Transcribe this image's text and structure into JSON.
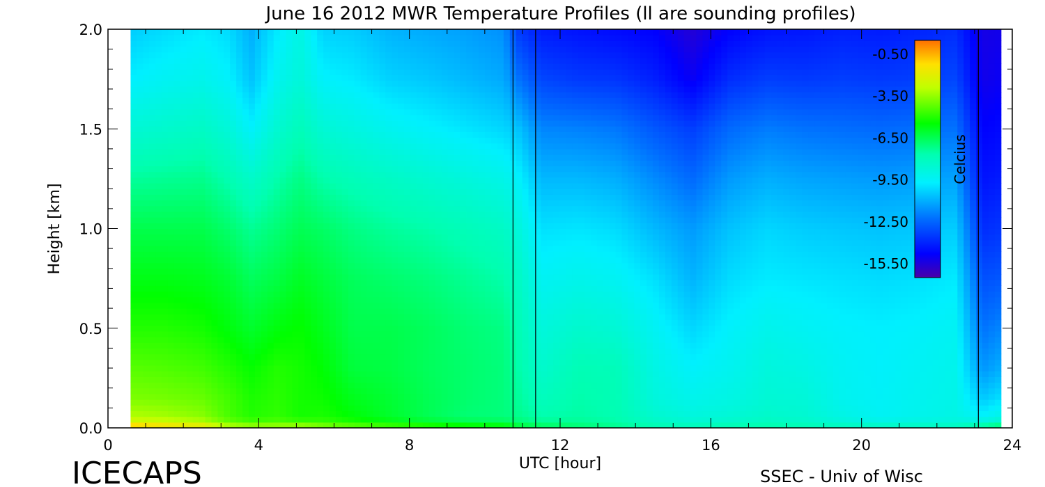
{
  "chart_data": {
    "type": "heatmap",
    "title": "June 16 2012 MWR Temperature Profiles (ll are sounding profiles)",
    "xlabel": "UTC [hour]",
    "ylabel": "Height [km]",
    "xlim": [
      0,
      24
    ],
    "ylim": [
      0,
      2
    ],
    "x_ticks": [
      "0",
      "4",
      "8",
      "12",
      "16",
      "20",
      "24"
    ],
    "y_ticks": [
      "0.0",
      "0.5",
      "1.0",
      "1.5",
      "2.0"
    ],
    "data_extent_x": [
      0.6,
      23.7
    ],
    "sounding_times": [
      10.75,
      11.35,
      23.1
    ],
    "colorbar": {
      "label": "Celcius",
      "ticks": [
        "-0.50",
        "-3.50",
        "-6.50",
        "-9.50",
        "-12.50",
        "-15.50"
      ],
      "range": [
        -16.5,
        0.5
      ]
    },
    "times": [
      0.6,
      1.5,
      2.5,
      3.2,
      3.8,
      4.5,
      5.1,
      5.7,
      6.5,
      7.5,
      8.5,
      9.5,
      10.5,
      10.9,
      11.5,
      12.5,
      13.5,
      14.5,
      15.5,
      16.5,
      17.5,
      18.5,
      19.5,
      20.5,
      21.5,
      22.5,
      23.2,
      23.7
    ],
    "heights": [
      0.0,
      0.05,
      0.15,
      0.3,
      0.5,
      0.75,
      1.0,
      1.25,
      1.5,
      1.75,
      2.0
    ],
    "temperature_celsius": [
      [
        -0.5,
        -3.0,
        -3.8,
        -4.3,
        -5.0,
        -5.7,
        -6.4,
        -7.4,
        -8.6,
        -9.7,
        -10.4
      ],
      [
        -1.0,
        -3.2,
        -3.9,
        -4.4,
        -5.0,
        -5.7,
        -6.4,
        -7.3,
        -8.4,
        -9.4,
        -10.1
      ],
      [
        -1.5,
        -3.6,
        -4.1,
        -4.6,
        -5.2,
        -5.8,
        -6.4,
        -7.2,
        -8.2,
        -9.2,
        -9.8
      ],
      [
        -2.8,
        -4.5,
        -4.6,
        -5.0,
        -5.6,
        -6.1,
        -6.8,
        -7.7,
        -8.7,
        -9.6,
        -10.1
      ],
      [
        -3.2,
        -5.0,
        -5.1,
        -5.4,
        -6.0,
        -6.6,
        -7.3,
        -8.3,
        -9.6,
        -10.6,
        -11.0
      ],
      [
        -3.2,
        -4.8,
        -4.9,
        -5.0,
        -5.6,
        -6.3,
        -6.9,
        -7.6,
        -8.5,
        -9.3,
        -9.8
      ],
      [
        -3.0,
        -5.2,
        -5.2,
        -5.2,
        -5.4,
        -5.9,
        -6.5,
        -7.1,
        -7.9,
        -8.7,
        -9.0
      ],
      [
        -3.6,
        -5.1,
        -5.3,
        -5.5,
        -5.8,
        -6.2,
        -6.7,
        -7.6,
        -8.6,
        -9.6,
        -10.3
      ],
      [
        -4.0,
        -5.5,
        -5.8,
        -6.2,
        -6.4,
        -6.6,
        -7.1,
        -7.9,
        -8.9,
        -9.8,
        -10.4
      ],
      [
        -4.4,
        -6.0,
        -6.1,
        -6.3,
        -6.4,
        -6.8,
        -7.4,
        -8.2,
        -9.3,
        -10.3,
        -10.9
      ],
      [
        -4.7,
        -6.5,
        -6.5,
        -6.6,
        -6.6,
        -7.0,
        -7.6,
        -8.5,
        -9.6,
        -10.5,
        -11.1
      ],
      [
        -5.0,
        -6.9,
        -6.8,
        -6.8,
        -6.9,
        -7.3,
        -7.9,
        -8.8,
        -9.9,
        -10.8,
        -11.3
      ],
      [
        -5.2,
        -7.0,
        -7.0,
        -7.0,
        -7.1,
        -7.6,
        -8.2,
        -9.1,
        -10.2,
        -11.1,
        -11.6
      ],
      [
        -6.0,
        -7.2,
        -7.4,
        -7.6,
        -7.8,
        -8.2,
        -8.8,
        -9.6,
        -10.6,
        -12.2,
        -13.5
      ],
      [
        -6.5,
        -7.6,
        -8.0,
        -8.4,
        -8.8,
        -9.4,
        -10.0,
        -10.8,
        -11.8,
        -13.2,
        -14.2
      ],
      [
        -6.8,
        -7.5,
        -7.6,
        -7.8,
        -8.4,
        -9.2,
        -9.9,
        -10.8,
        -11.9,
        -13.5,
        -14.4
      ],
      [
        -7.2,
        -7.7,
        -7.8,
        -7.9,
        -8.6,
        -9.4,
        -10.1,
        -11.0,
        -12.1,
        -13.6,
        -14.6
      ],
      [
        -7.6,
        -8.4,
        -8.8,
        -9.0,
        -9.4,
        -10.0,
        -10.8,
        -11.7,
        -12.8,
        -14.1,
        -14.8
      ],
      [
        -7.8,
        -8.8,
        -9.2,
        -9.6,
        -10.2,
        -10.9,
        -11.4,
        -12.4,
        -13.4,
        -15.0,
        -15.6
      ],
      [
        -7.6,
        -8.6,
        -9.0,
        -9.3,
        -9.6,
        -10.1,
        -10.6,
        -11.4,
        -12.4,
        -13.8,
        -14.8
      ],
      [
        -7.5,
        -8.3,
        -8.6,
        -8.8,
        -9.2,
        -9.8,
        -10.2,
        -11.0,
        -12.0,
        -13.4,
        -14.4
      ],
      [
        -7.7,
        -8.5,
        -8.7,
        -9.0,
        -9.4,
        -9.9,
        -10.4,
        -11.2,
        -12.2,
        -13.5,
        -14.3
      ],
      [
        -7.9,
        -9.0,
        -9.3,
        -9.4,
        -9.6,
        -10.0,
        -10.5,
        -11.3,
        -12.3,
        -13.4,
        -14.1
      ],
      [
        -8.0,
        -9.4,
        -9.5,
        -9.6,
        -9.7,
        -10.1,
        -10.6,
        -11.4,
        -12.4,
        -13.5,
        -14.2
      ],
      [
        -8.0,
        -9.2,
        -9.3,
        -9.4,
        -9.6,
        -10.0,
        -10.5,
        -11.3,
        -12.3,
        -13.4,
        -14.0
      ],
      [
        -8.0,
        -9.0,
        -9.1,
        -9.2,
        -9.4,
        -9.8,
        -10.4,
        -11.2,
        -12.2,
        -13.2,
        -13.8
      ],
      [
        -7.0,
        -9.5,
        -10.5,
        -11.5,
        -12.2,
        -13.0,
        -13.8,
        -14.4,
        -14.8,
        -15.2,
        -15.3
      ],
      [
        -6.5,
        -9.0,
        -10.0,
        -11.0,
        -11.8,
        -12.8,
        -13.6,
        -14.2,
        -14.6,
        -15.0,
        -15.2
      ]
    ]
  },
  "footer": {
    "brand": "ICECAPS",
    "credit": "SSEC - Univ of Wisc"
  }
}
